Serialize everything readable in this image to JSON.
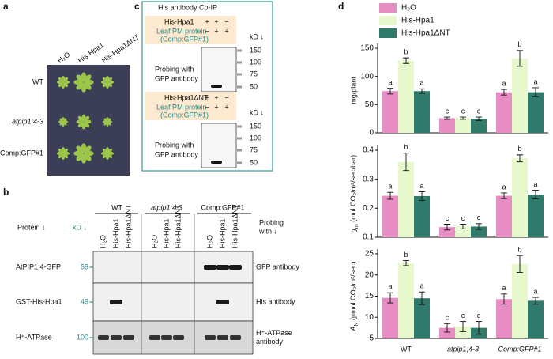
{
  "panel_labels": [
    "a",
    "b",
    "c",
    "d"
  ],
  "panel_a": {
    "columns": [
      "H₂O",
      "His-Hpa1",
      "His-Hpa1ΔNT"
    ],
    "rows": [
      "WT",
      "atpip1;4-3",
      "Comp:GFP#1"
    ]
  },
  "panel_b": {
    "groups": [
      "WT",
      "atpip1;4-3",
      "Comp:GFP#1"
    ],
    "lanes": [
      "H₂O",
      "His-Hpa1",
      "His-Hpa1ΔNT"
    ],
    "protein_header": "Protein ↓",
    "kd_header": "kD ↓",
    "probe_header": [
      "Probing",
      "with ↓"
    ],
    "rows": [
      {
        "protein": "AtPIP1;4-GFP",
        "kd": 59,
        "probe": [
          "GFP antibody"
        ]
      },
      {
        "protein": "GST-His-Hpa1",
        "kd": 49,
        "probe": [
          "His antibody"
        ]
      },
      {
        "protein": "H⁺-ATPase",
        "kd": 100,
        "probe": [
          "H⁺-ATPase",
          "antibody"
        ]
      }
    ]
  },
  "panel_c": {
    "title": "His antibody Co-IP",
    "kd_header": "kD ↓",
    "blots": [
      {
        "bait": "His-Hpa1",
        "bait_signs": [
          "+",
          "+",
          "−"
        ],
        "prey": "Leaf PM protein",
        "prey_signs": [
          "−",
          "+",
          "+"
        ],
        "prey_note": "(Comp:GFP#1)",
        "probe": [
          "Probing with",
          "GFP antibody"
        ],
        "markers": [
          150,
          100,
          75,
          50
        ]
      },
      {
        "bait": "His-Hpa1ΔNT",
        "bait_signs": [
          "+",
          "+",
          "−"
        ],
        "prey": "Leaf PM protein",
        "prey_signs": [
          "−",
          "+",
          "+"
        ],
        "prey_note": "(Comp:GFP#1)",
        "probe": [
          "Probing with",
          "GFP antibody"
        ],
        "markers": [
          150,
          100,
          75,
          50
        ]
      }
    ]
  },
  "chart_data": [
    {
      "type": "bar",
      "ylabel": "mg/plant",
      "categories": [
        "WT",
        "atpip1;4-3",
        "Comp:GFP#1"
      ],
      "ylim": [
        0,
        150
      ],
      "yticks": [
        0,
        50,
        100,
        150
      ],
      "legend": "upper left",
      "series": [
        {
          "name": "H₂O",
          "color": "#e88cc4",
          "values": [
            74,
            26,
            72
          ],
          "errors": [
            5,
            2,
            5
          ],
          "letters": [
            "a",
            "c",
            "a"
          ]
        },
        {
          "name": "His-Hpa1",
          "color": "#e6f8cc",
          "values": [
            128,
            26,
            132
          ],
          "errors": [
            5,
            2,
            14
          ],
          "letters": [
            "b",
            "c",
            "b"
          ]
        },
        {
          "name": "His-Hpa1ΔNT",
          "color": "#2f7a6b",
          "values": [
            74,
            25,
            72
          ],
          "errors": [
            4,
            3,
            8
          ],
          "letters": [
            "a",
            "c",
            "a"
          ]
        }
      ]
    },
    {
      "type": "bar",
      "ylabel": {
        "symbol": "g",
        "sub": "m",
        "unit": " (mol CO₂/m²/sec/bar)"
      },
      "categories": [
        "WT",
        "atpip1;4-3",
        "Comp:GFP#1"
      ],
      "ylim": [
        0.1,
        0.4
      ],
      "yticks": [
        0.1,
        0.2,
        0.3,
        0.4
      ],
      "series": [
        {
          "name": "H₂O",
          "color": "#e88cc4",
          "values": [
            0.243,
            0.135,
            0.243
          ],
          "errors": [
            0.012,
            0.01,
            0.01
          ],
          "letters": [
            "a",
            "c",
            "a"
          ]
        },
        {
          "name": "His-Hpa1",
          "color": "#e6f8cc",
          "values": [
            0.36,
            0.137,
            0.372
          ],
          "errors": [
            0.03,
            0.008,
            0.012
          ],
          "letters": [
            "b",
            "c",
            "b"
          ]
        },
        {
          "name": "His-Hpa1ΔNT",
          "color": "#2f7a6b",
          "values": [
            0.242,
            0.137,
            0.247
          ],
          "errors": [
            0.015,
            0.01,
            0.015
          ],
          "letters": [
            "a",
            "c",
            "a"
          ]
        }
      ]
    },
    {
      "type": "bar",
      "ylabel": {
        "symbol": "A",
        "sub": "N",
        "unit": " (μmol CO₂/m²/sec)"
      },
      "categories": [
        "WT",
        "atpip1;4-3",
        "Comp:GFP#1"
      ],
      "ylim": [
        5,
        25
      ],
      "yticks": [
        5,
        10,
        15,
        20,
        25
      ],
      "series": [
        {
          "name": "H₂O",
          "color": "#e88cc4",
          "values": [
            14.6,
            7.5,
            14.3
          ],
          "errors": [
            1.2,
            1,
            1.2
          ],
          "letters": [
            "a",
            "c",
            "a"
          ]
        },
        {
          "name": "His-Hpa1",
          "color": "#e6f8cc",
          "values": [
            22.8,
            7.8,
            22.6
          ],
          "errors": [
            0.6,
            1.2,
            2
          ],
          "letters": [
            "b",
            "c",
            "b"
          ]
        },
        {
          "name": "His-Hpa1ΔNT",
          "color": "#2f7a6b",
          "values": [
            14.5,
            7.5,
            13.9
          ],
          "errors": [
            1.5,
            1.5,
            0.8
          ],
          "letters": [
            "a",
            "c",
            "a"
          ]
        }
      ]
    }
  ]
}
